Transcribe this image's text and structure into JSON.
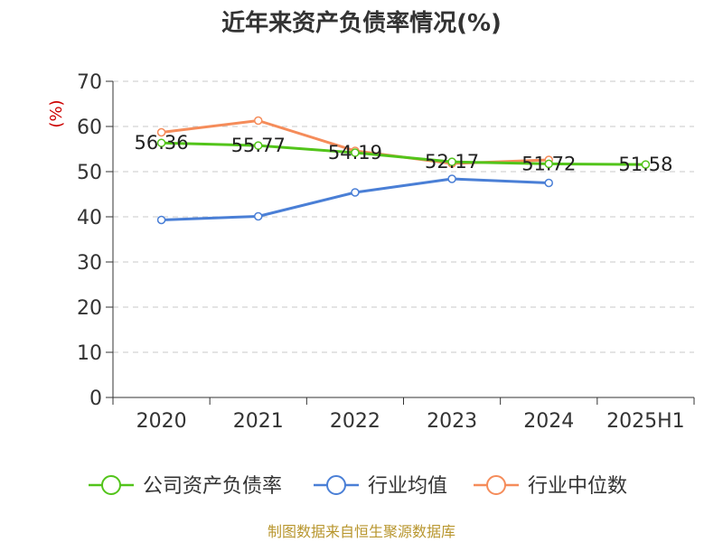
{
  "chart_data": {
    "type": "line",
    "title": "近年来资产负债率情况(%)",
    "y_unit": "(%)",
    "categories": [
      "2020",
      "2021",
      "2022",
      "2023",
      "2024",
      "2025H1"
    ],
    "ylim": [
      0,
      70
    ],
    "yticks": [
      0,
      10,
      20,
      30,
      40,
      50,
      60,
      70
    ],
    "grid": "horizontal dashed",
    "legend_position": "bottom",
    "series": [
      {
        "name": "公司资产负债率",
        "color": "#52c41a",
        "values": [
          56.36,
          55.77,
          54.19,
          52.17,
          51.72,
          51.58
        ],
        "labels": [
          "56.36",
          "55.77",
          "54.19",
          "52.17",
          "51.72",
          "51.58"
        ]
      },
      {
        "name": "行业均值",
        "color": "#4a7fd6",
        "values": [
          39.3,
          40.1,
          45.4,
          48.4,
          47.5,
          null
        ]
      },
      {
        "name": "行业中位数",
        "color": "#f58c5a",
        "values": [
          58.7,
          61.3,
          54.6,
          51.8,
          52.6,
          null
        ]
      }
    ]
  },
  "source": "制图数据来自恒生聚源数据库"
}
